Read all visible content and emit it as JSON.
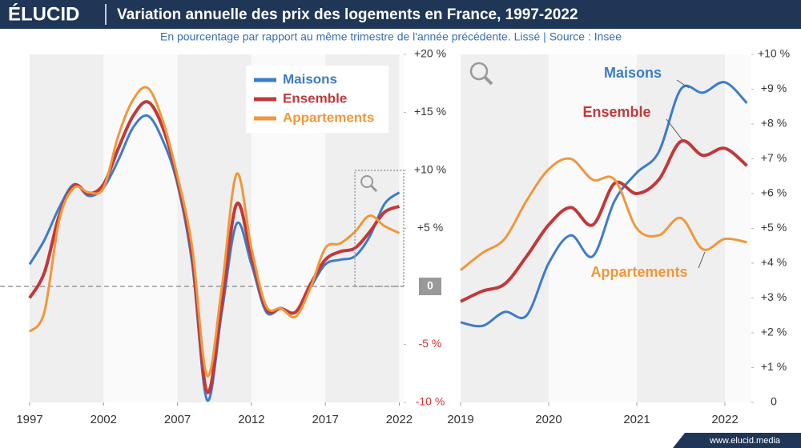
{
  "header": {
    "brand": "ÉLUCID",
    "title": "Variation annuelle des prix des logements en France, 1997-2022",
    "subtitle": "En pourcentage par rapport au même trimestre de l'année précédente. Lissé  |  Source : Insee"
  },
  "footer": "www.elucid.media",
  "chart_data": [
    {
      "type": "line",
      "legend": "upper right",
      "grid": false,
      "x": [
        1997,
        1998,
        1999,
        2000,
        2001,
        2002,
        2003,
        2004,
        2005,
        2006,
        2007,
        2008,
        2009,
        2010,
        2011,
        2012,
        2013,
        2014,
        2015,
        2016,
        2017,
        2018,
        2019,
        2020,
        2021,
        2022
      ],
      "xlim": [
        1997,
        2022.3
      ],
      "xticks": [
        1997,
        2002,
        2007,
        2012,
        2017,
        2022
      ],
      "ylim": [
        -10,
        20
      ],
      "yticks": [
        {
          "value": -10,
          "label": "-10 %"
        },
        {
          "value": -5,
          "label": "-5 %"
        },
        0,
        {
          "value": 5,
          "label": "+5 %"
        },
        {
          "value": 10,
          "label": "+10 %"
        },
        {
          "value": 15,
          "label": "+15 %"
        },
        {
          "value": 20,
          "label": "+20 %"
        }
      ],
      "series": [
        {
          "name": "Maisons",
          "color": "#3d7cc9",
          "values": [
            1.9,
            4.0,
            6.8,
            8.8,
            7.8,
            8.5,
            10.9,
            13.7,
            14.7,
            12.6,
            8.8,
            1.9,
            -9.8,
            -2.2,
            5.4,
            1.9,
            -2.2,
            -1.9,
            -2.2,
            -0.1,
            1.9,
            2.3,
            2.6,
            4.3,
            7.1,
            8.1
          ]
        },
        {
          "name": "Ensemble",
          "color": "#c0393b",
          "values": [
            -1.0,
            1.2,
            6.1,
            8.7,
            8.0,
            8.8,
            11.9,
            14.7,
            15.9,
            13.7,
            9.2,
            2.6,
            -9.1,
            -1.5,
            7.1,
            2.6,
            -1.9,
            -1.9,
            -2.2,
            0.2,
            2.3,
            3.0,
            3.3,
            4.7,
            6.4,
            6.9
          ]
        },
        {
          "name": "Appartements",
          "color": "#f0973a",
          "values": [
            -3.9,
            -2.2,
            5.7,
            8.5,
            8.1,
            8.5,
            13.0,
            16.1,
            17.1,
            14.3,
            9.5,
            3.3,
            -7.7,
            -0.1,
            9.7,
            3.3,
            -1.7,
            -1.9,
            -2.6,
            -0.1,
            3.3,
            3.7,
            4.7,
            6.1,
            5.2,
            4.6
          ]
        }
      ]
    },
    {
      "type": "line",
      "grid": false,
      "x": [
        2019,
        2019.25,
        2019.5,
        2019.75,
        2020,
        2020.25,
        2020.5,
        2020.75,
        2021,
        2021.25,
        2021.5,
        2021.75,
        2022,
        2022.25
      ],
      "xlim": [
        2019,
        2022.3
      ],
      "xticks": [
        2019,
        2020,
        2021,
        2022
      ],
      "ylim": [
        0,
        10
      ],
      "yticks": [
        0,
        {
          "value": 1,
          "label": "+1 %"
        },
        {
          "value": 2,
          "label": "+2 %"
        },
        {
          "value": 3,
          "label": "+3 %"
        },
        {
          "value": 4,
          "label": "+4 %"
        },
        {
          "value": 5,
          "label": "+5 %"
        },
        {
          "value": 6,
          "label": "+6 %"
        },
        {
          "value": 7,
          "label": "+7 %"
        },
        {
          "value": 8,
          "label": "+8 %"
        },
        {
          "value": 9,
          "label": "+9 %"
        },
        {
          "value": 10,
          "label": "+10 %"
        }
      ],
      "series": [
        {
          "name": "Maisons",
          "color": "#3d7cc9",
          "values": [
            2.3,
            2.2,
            2.6,
            2.5,
            4.0,
            4.8,
            4.2,
            5.8,
            6.6,
            7.2,
            9.0,
            8.9,
            9.2,
            8.6
          ]
        },
        {
          "name": "Ensemble",
          "color": "#c0393b",
          "values": [
            2.9,
            3.2,
            3.4,
            4.2,
            5.1,
            5.6,
            5.1,
            6.3,
            6.0,
            6.4,
            7.5,
            7.1,
            7.3,
            6.8
          ]
        },
        {
          "name": "Appartements",
          "color": "#f0973a",
          "values": [
            3.8,
            4.3,
            4.7,
            5.8,
            6.7,
            7.0,
            6.4,
            6.4,
            5.0,
            4.8,
            5.3,
            4.4,
            4.7,
            4.6
          ]
        }
      ]
    }
  ]
}
